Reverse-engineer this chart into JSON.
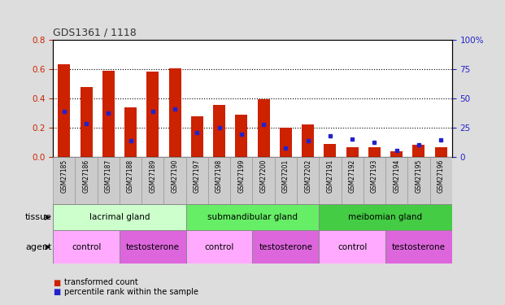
{
  "title": "GDS1361 / 1118",
  "samples": [
    "GSM27185",
    "GSM27186",
    "GSM27187",
    "GSM27188",
    "GSM27189",
    "GSM27190",
    "GSM27197",
    "GSM27198",
    "GSM27199",
    "GSM27200",
    "GSM27201",
    "GSM27202",
    "GSM27191",
    "GSM27192",
    "GSM27193",
    "GSM27194",
    "GSM27195",
    "GSM27196"
  ],
  "red_values": [
    0.635,
    0.48,
    0.59,
    0.34,
    0.585,
    0.605,
    0.275,
    0.355,
    0.29,
    0.395,
    0.2,
    0.22,
    0.09,
    0.065,
    0.065,
    0.04,
    0.085,
    0.065
  ],
  "blue_values": [
    38.75,
    28.75,
    37.5,
    13.75,
    38.75,
    41.25,
    20.625,
    25.0,
    19.375,
    28.125,
    7.5,
    13.75,
    18.125,
    15.0,
    12.5,
    5.625,
    10.625,
    14.375
  ],
  "tissue_groups": [
    {
      "label": "lacrimal gland",
      "start": 0,
      "end": 6,
      "color": "#CCFFCC"
    },
    {
      "label": "submandibular gland",
      "start": 6,
      "end": 12,
      "color": "#66EE66"
    },
    {
      "label": "meibomian gland",
      "start": 12,
      "end": 18,
      "color": "#44CC44"
    }
  ],
  "agent_groups": [
    {
      "label": "control",
      "start": 0,
      "end": 3,
      "color": "#FFAAFF"
    },
    {
      "label": "testosterone",
      "start": 3,
      "end": 6,
      "color": "#DD66DD"
    },
    {
      "label": "control",
      "start": 6,
      "end": 9,
      "color": "#FFAAFF"
    },
    {
      "label": "testosterone",
      "start": 9,
      "end": 12,
      "color": "#DD66DD"
    },
    {
      "label": "control",
      "start": 12,
      "end": 15,
      "color": "#FFAAFF"
    },
    {
      "label": "testosterone",
      "start": 15,
      "end": 18,
      "color": "#DD66DD"
    }
  ],
  "ylim_left": [
    0,
    0.8
  ],
  "ylim_right": [
    0,
    100
  ],
  "yticks_left": [
    0,
    0.2,
    0.4,
    0.6,
    0.8
  ],
  "yticks_right": [
    0,
    25,
    50,
    75,
    100
  ],
  "bar_color": "#CC2200",
  "marker_color": "#2222CC",
  "bar_width": 0.55,
  "legend_red": "transformed count",
  "legend_blue": "percentile rank within the sample",
  "fig_bg": "#DDDDDD",
  "plot_bg": "#FFFFFF",
  "xtick_bg": "#CCCCCC",
  "left_tick_color": "#CC2200",
  "right_tick_color": "#2222CC",
  "title_color": "#333333"
}
